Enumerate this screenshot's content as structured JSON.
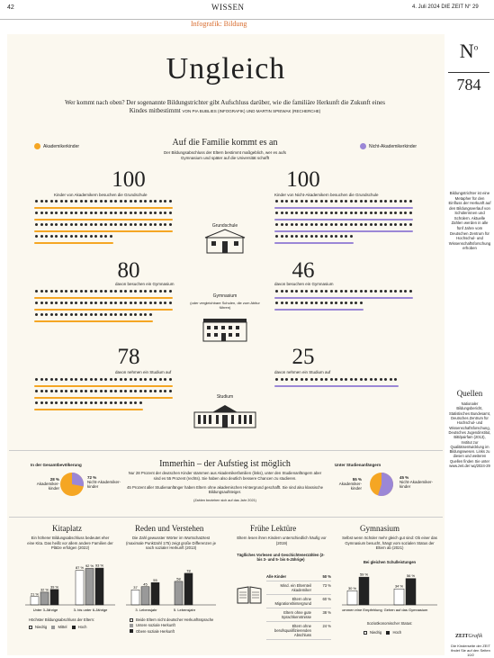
{
  "header": {
    "page_number": "42",
    "section": "WISSEN",
    "issue": "4. Juli 2024   DIE ZEIT N° 29",
    "subsection": "Infografik: Bildung"
  },
  "number_badge": {
    "label": "N",
    "label_sup": "o",
    "number": "784"
  },
  "title": "Ungleich",
  "lede": "Wer kommt nach oben? Der sogenannte Bildungstrichter gibt Aufschluss darüber, wie die familiäre Herkunft die Zukunft eines Kindes mitbestimmt",
  "credit": "Von Pia Bublies (Infografik) und Martin Spiewak (Recherche)",
  "legend": {
    "left": "Akademikerkinder",
    "right": "Nicht-Akademikerkinder"
  },
  "family": {
    "heading": "Auf die Familie kommt es an",
    "sub": "Der Bildungsabschluss der Eltern bestimmt maßgeblich, wer es aufs Gymnasium und später auf die Universität schafft"
  },
  "colors": {
    "orange": "#f5a623",
    "purple": "#9b87d6",
    "ink": "#2a2a2a",
    "panel": "#fbf8ef",
    "accent": "#d86c2e"
  },
  "funnel": {
    "left": [
      {
        "value": "100",
        "text": "Kinder von Akademikern besuchen die Grundschule"
      },
      {
        "value": "80",
        "text": "davon besuchen ein Gymnasium"
      },
      {
        "value": "78",
        "text": "davon nehmen ein Studium auf"
      }
    ],
    "right": [
      {
        "value": "100",
        "text": "Kinder von Nicht-Akademikern besuchen die Grundschule"
      },
      {
        "value": "46",
        "text": "davon besuchen ein Gymnasium"
      },
      {
        "value": "25",
        "text": "davon nehmen ein Studium auf"
      }
    ],
    "stages": [
      {
        "label": "Grundschule",
        "note": ""
      },
      {
        "label": "Gymnasium",
        "note": "(oder vergleichbare Schulen, die zum Abitur führen)"
      },
      {
        "label": "Studium",
        "note": ""
      }
    ]
  },
  "middle": {
    "heading": "Immerhin – der Aufstieg ist möglich",
    "text1": "Nur 28 Prozent der deutschen Kinder stammen aus Akademikerfamilien (links), unter den Studienanfängern aber sind es 55 Prozent (rechts). Sie haben also deutlich bessere Chancen zu studieren.",
    "text2": "45 Prozent aller Studienanfänger haben Eltern ohne akademischen Hintergrund geschafft. Sie sind also klassische Bildungsaufsteiger.",
    "note": "(Zahlen beziehen sich auf das Jahr 2021)",
    "pie_left": {
      "title": "In der Gesamtbevölkerung",
      "a_pct": "28 %",
      "a_label": "Akademiker-kinder",
      "b_pct": "72 %",
      "b_label": "Nicht-Akademiker-kinder",
      "a_value": 28
    },
    "pie_right": {
      "title": "Unter Studienanfängern",
      "a_pct": "55 %",
      "a_label": "Akademiker-kinder",
      "b_pct": "45 %",
      "b_label": "Nicht-Akademiker-kinder",
      "a_value": 55
    }
  },
  "columns": {
    "kitaplatz": {
      "heading": "Kitaplatz",
      "text": "Ein höherer Bildungsabschluss bedeutet eher eine Kita. Das heißt vor allem andere Familien der Plätze erfolgen (2022)",
      "groups": [
        "Unter 3-Jährige",
        "3- bis unter 6-Jährige"
      ],
      "values": [
        [
          21,
          32,
          39
        ],
        [
          87,
          92,
          93
        ]
      ],
      "labels": [
        [
          "21 %",
          "32 %",
          "39 %"
        ],
        [
          "87 %",
          "92 %",
          "93 %"
        ]
      ],
      "legend_title": "Höchster Bildungsabschluss der Eltern:",
      "legend": [
        "Niedrig",
        "Mittel",
        "Hoch"
      ]
    },
    "reden": {
      "heading": "Reden und Verstehen",
      "text": "Die Zahl gewusster Wörter im Wortschatztest (maximale Punktzahl 175) zeigt große Differenzen je nach sozialer Herkunft (2013)",
      "groups": [
        "3. Lebensjahr",
        "5. Lebensjahr"
      ],
      "values": [
        [
          37,
          45,
          55
        ],
        [
          58,
          78
        ]
      ],
      "labels": [
        [
          "37",
          "45",
          "55"
        ],
        [
          "58",
          "78"
        ]
      ],
      "legend": [
        "Beide Eltern nicht deutscher Herkunftssprache",
        "Untere soziale Herkunft",
        "Obere soziale Herkunft"
      ]
    },
    "lektuere": {
      "heading": "Frühe Lektüre",
      "text": "Eltern lesen ihren Kindern unterschiedlich häufig vor (2019)",
      "table_title": "Täglliches Vorlesen und Geschichtenerzählen (2- bis 3- und 5- bis 6-Jährige)",
      "rows": [
        {
          "label": "Alle Kinder",
          "value": "50 %"
        },
        {
          "label": "Mind. ein Elternteil Akademiker",
          "value": "73 %"
        },
        {
          "label": "Eltern ohne Migrationshintergrund",
          "value": "60 %"
        },
        {
          "label": "Eltern ohne gute Sprachkenntnisse",
          "value": "38 %"
        },
        {
          "label": "Eltern ohne berufsqualifizierenden Abschluss",
          "value": "24 %"
        }
      ]
    },
    "gymnasium": {
      "heading": "Gymnasium",
      "text": "Selbst wenn Schüler mehr gleich gut sind: Ob einer das Gymnasium besucht, hängt vom sozialen Status der Eltern ab (2021)",
      "chart_title": "Bei gleichen Schulleistungen",
      "groups": [
        "Bekommen eine Empfehlung",
        "Gehen auf das Gymnasium"
      ],
      "values": [
        [
          30,
          59
        ],
        [
          34,
          56
        ]
      ],
      "labels": [
        [
          "30 %",
          "59 %"
        ],
        [
          "34 %",
          "56 %"
        ]
      ],
      "legend_title": "Sozioökonomischer Status:",
      "legend": [
        "Niedrig",
        "Hoch"
      ]
    }
  },
  "sidebar": {
    "definition": "Bildungstrichter ist eine Metapher für den Einfluss der Herkunft auf den Bildungsverlauf von Schülerinnen und Schülern. Aktuelle Zahlen werden in alle fünf Jahre vom Deutschen Zentrum für Hochschul- und Wissenschaftsforschung erhoben",
    "quellen_heading": "Quellen",
    "quellen": "Nationaler Bildungsbericht, Statistisches Bundesamt, Deutsches Zentrum für Hochschul- und Wissenschaftsforschung, Deutsches Jugendinstitut, BiB/pairfam (2013), Institut zur Qualitätsentwicklung im Bildungswesen. Links zu diesen und weiteren Quellen finden Sie unter www.zeit.de/ wq/2024-29",
    "logo": "ZEIT",
    "logo_sup": "Grafik",
    "footer": "Die Kinderseite der ZEIT findet Sie auf den Seiten 10/2"
  }
}
